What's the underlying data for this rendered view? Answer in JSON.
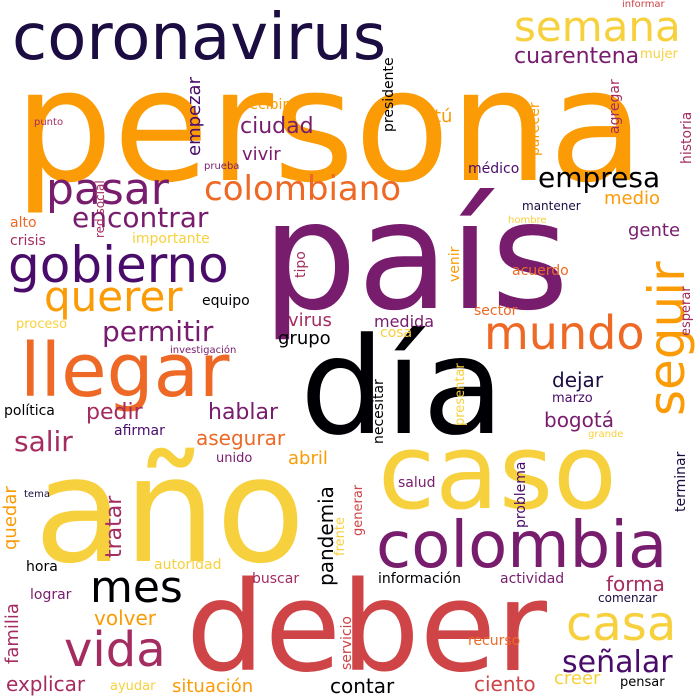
{
  "colors": {
    "black": "#000004",
    "navy": "#1b0c41",
    "plum": "#4a0c6b",
    "purple": "#781c6d",
    "magenta": "#a52c60",
    "red": "#cf4446",
    "orange_red": "#ed6925",
    "orange": "#fb9b06",
    "gold": "#f7d13d"
  },
  "words": [
    {
      "text": "coronavirus",
      "color": "navy"
    },
    {
      "text": "persona",
      "color": "orange"
    },
    {
      "text": "país",
      "color": "purple"
    },
    {
      "text": "día",
      "color": "black"
    },
    {
      "text": "año",
      "color": "gold"
    },
    {
      "text": "deber",
      "color": "red"
    },
    {
      "text": "caso",
      "color": "gold"
    },
    {
      "text": "colombia",
      "color": "purple"
    },
    {
      "text": "llegar",
      "color": "orange_red"
    },
    {
      "text": "gobierno",
      "color": "plum"
    },
    {
      "text": "semana",
      "color": "gold"
    },
    {
      "text": "pasar",
      "color": "purple"
    },
    {
      "text": "colombiano",
      "color": "orange_red"
    },
    {
      "text": "querer",
      "color": "orange"
    },
    {
      "text": "mundo",
      "color": "orange_red"
    },
    {
      "text": "seguir",
      "color": "orange"
    },
    {
      "text": "mes",
      "color": "black"
    },
    {
      "text": "casa",
      "color": "gold"
    },
    {
      "text": "vida",
      "color": "magenta"
    },
    {
      "text": "señalar",
      "color": "plum"
    },
    {
      "text": "empresa",
      "color": "black"
    },
    {
      "text": "encontrar",
      "color": "purple"
    },
    {
      "text": "permitir",
      "color": "purple"
    },
    {
      "text": "cuarentena",
      "color": "purple"
    },
    {
      "text": "ciudad",
      "color": "purple"
    },
    {
      "text": "vivir",
      "color": "purple"
    },
    {
      "text": "salir",
      "color": "magenta"
    },
    {
      "text": "hablar",
      "color": "purple"
    },
    {
      "text": "pedir",
      "color": "magenta"
    },
    {
      "text": "asegurar",
      "color": "orange_red"
    },
    {
      "text": "abril",
      "color": "orange"
    },
    {
      "text": "virus",
      "color": "magenta"
    },
    {
      "text": "medida",
      "color": "purple"
    },
    {
      "text": "grupo",
      "color": "black"
    },
    {
      "text": "dejar",
      "color": "navy"
    },
    {
      "text": "bogotá",
      "color": "purple"
    },
    {
      "text": "forma",
      "color": "magenta"
    },
    {
      "text": "volver",
      "color": "orange"
    },
    {
      "text": "situación",
      "color": "orange"
    },
    {
      "text": "explicar",
      "color": "magenta"
    },
    {
      "text": "contar",
      "color": "black"
    },
    {
      "text": "ciento",
      "color": "red"
    },
    {
      "text": "creer",
      "color": "gold"
    },
    {
      "text": "pensar",
      "color": "black"
    },
    {
      "text": "buscar",
      "color": "magenta"
    },
    {
      "text": "información",
      "color": "black"
    },
    {
      "text": "actividad",
      "color": "purple"
    },
    {
      "text": "comenzar",
      "color": "navy"
    },
    {
      "text": "recurso",
      "color": "orange_red"
    },
    {
      "text": "ayudar",
      "color": "gold"
    },
    {
      "text": "lograr",
      "color": "purple"
    },
    {
      "text": "hora",
      "color": "black"
    },
    {
      "text": "autoridad",
      "color": "gold"
    },
    {
      "text": "salud",
      "color": "purple"
    },
    {
      "text": "unido",
      "color": "purple"
    },
    {
      "text": "afirmar",
      "color": "plum"
    },
    {
      "text": "política",
      "color": "black"
    },
    {
      "text": "marzo",
      "color": "plum"
    },
    {
      "text": "grande",
      "color": "gold"
    },
    {
      "text": "gente",
      "color": "purple"
    },
    {
      "text": "medio",
      "color": "orange"
    },
    {
      "text": "acuerdo",
      "color": "orange_red"
    },
    {
      "text": "mantener",
      "color": "navy"
    },
    {
      "text": "sector",
      "color": "orange_red"
    },
    {
      "text": "cosa",
      "color": "gold"
    },
    {
      "text": "equipo",
      "color": "black"
    },
    {
      "text": "alto",
      "color": "orange_red"
    },
    {
      "text": "crisis",
      "color": "magenta"
    },
    {
      "text": "importante",
      "color": "gold"
    },
    {
      "text": "proceso",
      "color": "gold"
    },
    {
      "text": "investigación",
      "color": "purple"
    },
    {
      "text": "recibir",
      "color": "orange"
    },
    {
      "text": "tú",
      "color": "orange"
    },
    {
      "text": "punto",
      "color": "magenta"
    },
    {
      "text": "prueba",
      "color": "purple"
    },
    {
      "text": "médico",
      "color": "plum"
    },
    {
      "text": "hombre",
      "color": "gold"
    },
    {
      "text": "tema",
      "color": "navy"
    },
    {
      "text": "informar",
      "color": "red"
    },
    {
      "text": "mujer",
      "color": "gold"
    },
    {
      "text": "empezar",
      "color": "plum"
    },
    {
      "text": "red social",
      "color": "magenta"
    },
    {
      "text": "presidente",
      "color": "black"
    },
    {
      "text": "parecer",
      "color": "orange"
    },
    {
      "text": "agregar",
      "color": "magenta"
    },
    {
      "text": "historia",
      "color": "magenta"
    },
    {
      "text": "tipo",
      "color": "magenta"
    },
    {
      "text": "venir",
      "color": "orange"
    },
    {
      "text": "esperar",
      "color": "magenta"
    },
    {
      "text": "presentar",
      "color": "gold"
    },
    {
      "text": "necesitar",
      "color": "black"
    },
    {
      "text": "problema",
      "color": "plum"
    },
    {
      "text": "terminar",
      "color": "navy"
    },
    {
      "text": "generar",
      "color": "red"
    },
    {
      "text": "frente",
      "color": "gold"
    },
    {
      "text": "pandemia",
      "color": "black"
    },
    {
      "text": "tratar",
      "color": "magenta"
    },
    {
      "text": "quedar",
      "color": "orange"
    },
    {
      "text": "familia",
      "color": "magenta"
    },
    {
      "text": "servicio",
      "color": "red"
    }
  ]
}
